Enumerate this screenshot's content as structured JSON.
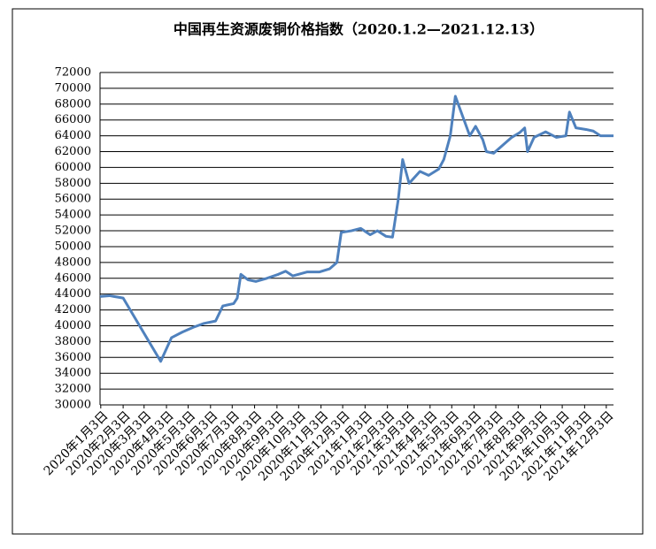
{
  "chart_data": {
    "type": "line",
    "title": "中国再生资源废铜价格指数（2020.1.2—2021.12.13）",
    "xlim": [
      "2020-01-02",
      "2021-12-13"
    ],
    "xticks": [
      {
        "value": "2020-01-03",
        "label": "2020年1月3日"
      },
      {
        "value": "2020-02-03",
        "label": "2020年2月3日"
      },
      {
        "value": "2020-03-03",
        "label": "2020年3月3日"
      },
      {
        "value": "2020-04-03",
        "label": "2020年4月3日"
      },
      {
        "value": "2020-05-03",
        "label": "2020年5月3日"
      },
      {
        "value": "2020-06-03",
        "label": "2020年6月3日"
      },
      {
        "value": "2020-07-03",
        "label": "2020年7月3日"
      },
      {
        "value": "2020-08-03",
        "label": "2020年8月3日"
      },
      {
        "value": "2020-09-03",
        "label": "2020年9月3日"
      },
      {
        "value": "2020-10-03",
        "label": "2020年10月3日"
      },
      {
        "value": "2020-11-03",
        "label": "2020年11月3日"
      },
      {
        "value": "2020-12-03",
        "label": "2020年12月3日"
      },
      {
        "value": "2021-01-03",
        "label": "2021年1月3日"
      },
      {
        "value": "2021-02-03",
        "label": "2021年2月3日"
      },
      {
        "value": "2021-03-03",
        "label": "2021年3月3日"
      },
      {
        "value": "2021-04-03",
        "label": "2021年4月3日"
      },
      {
        "value": "2021-05-03",
        "label": "2021年5月3日"
      },
      {
        "value": "2021-06-03",
        "label": "2021年6月3日"
      },
      {
        "value": "2021-07-03",
        "label": "2021年7月3日"
      },
      {
        "value": "2021-08-03",
        "label": "2021年8月3日"
      },
      {
        "value": "2021-09-03",
        "label": "2021年9月3日"
      },
      {
        "value": "2021-10-03",
        "label": "2021年10月3日"
      },
      {
        "value": "2021-11-03",
        "label": "2021年11月3日"
      },
      {
        "value": "2021-12-03",
        "label": "2021年12月3日"
      }
    ],
    "ylim": [
      30000,
      72000
    ],
    "yticks": [
      30000,
      32000,
      34000,
      36000,
      38000,
      40000,
      42000,
      44000,
      46000,
      48000,
      50000,
      52000,
      54000,
      56000,
      58000,
      60000,
      62000,
      64000,
      66000,
      68000,
      70000,
      72000
    ],
    "grid": true,
    "series": [
      {
        "color": "#4f81bd",
        "x": [
          "2020-01-02",
          "2020-01-15",
          "2020-02-03",
          "2020-03-26",
          "2020-04-10",
          "2020-04-25",
          "2020-05-10",
          "2020-05-25",
          "2020-06-10",
          "2020-06-20",
          "2020-07-05",
          "2020-07-10",
          "2020-07-15",
          "2020-07-25",
          "2020-08-05",
          "2020-08-20",
          "2020-09-05",
          "2020-09-15",
          "2020-09-25",
          "2020-10-15",
          "2020-11-01",
          "2020-11-15",
          "2020-11-25",
          "2020-12-01",
          "2020-12-15",
          "2020-12-28",
          "2021-01-10",
          "2021-01-20",
          "2021-02-01",
          "2021-02-10",
          "2021-02-18",
          "2021-02-24",
          "2021-03-05",
          "2021-03-20",
          "2021-04-01",
          "2021-04-15",
          "2021-04-22",
          "2021-05-01",
          "2021-05-08",
          "2021-05-18",
          "2021-05-28",
          "2021-06-05",
          "2021-06-15",
          "2021-06-20",
          "2021-06-30",
          "2021-07-10",
          "2021-07-25",
          "2021-08-05",
          "2021-08-12",
          "2021-08-16",
          "2021-08-25",
          "2021-09-10",
          "2021-09-25",
          "2021-10-08",
          "2021-10-13",
          "2021-10-22",
          "2021-11-05",
          "2021-11-15",
          "2021-11-25",
          "2021-12-13"
        ],
        "values": [
          43700,
          43800,
          43500,
          35500,
          38500,
          39200,
          39800,
          40300,
          40600,
          42500,
          42800,
          43500,
          46500,
          45800,
          45600,
          46000,
          46500,
          46900,
          46300,
          46800,
          46800,
          47200,
          48000,
          51800,
          52000,
          52300,
          51500,
          52000,
          51300,
          51200,
          56000,
          61000,
          58000,
          59500,
          59000,
          59800,
          61000,
          64000,
          69000,
          66500,
          64000,
          65200,
          63500,
          62000,
          61800,
          62600,
          63800,
          64400,
          65000,
          62000,
          63800,
          64500,
          63800,
          64000,
          67000,
          65000,
          64800,
          64600,
          64000,
          64000
        ]
      }
    ]
  }
}
